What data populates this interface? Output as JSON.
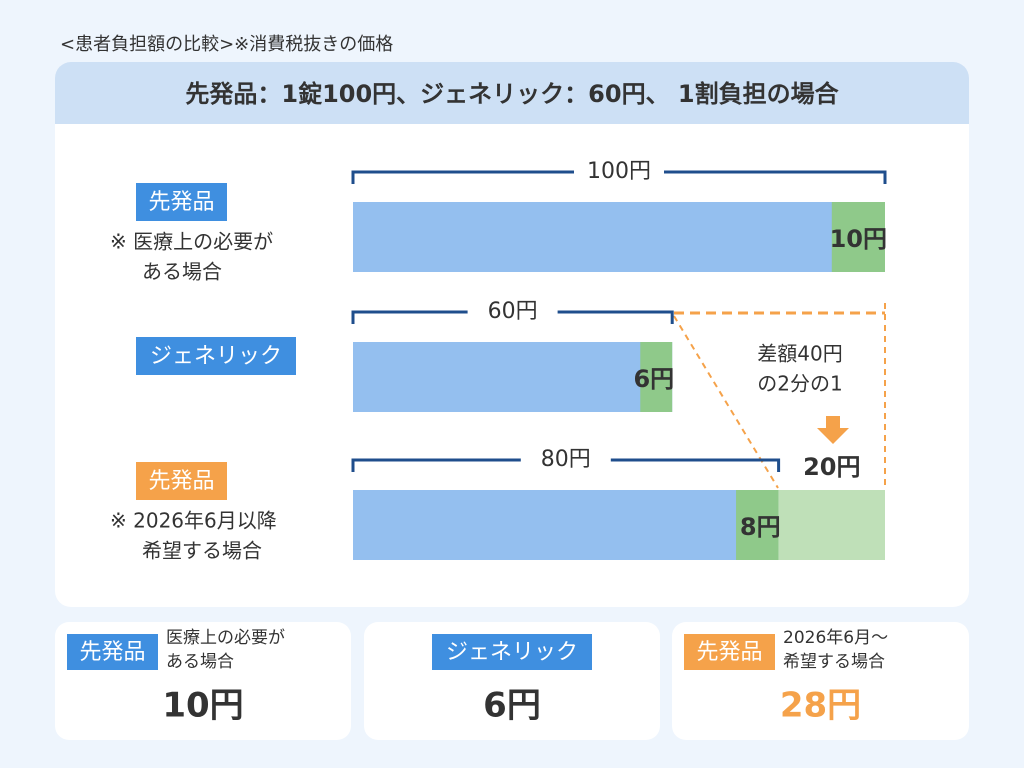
{
  "caption": "<患者負担額の比較>※消費税抜きの価格",
  "header": "先発品：1錠100円、ジェネリック：60円、 1割負担の場合",
  "rows": [
    {
      "tag": "先発品",
      "note": [
        "※ 医療上の必要が",
        "ある場合"
      ],
      "price": 100,
      "price_label": "100円",
      "copay": 10,
      "copay_label": "10円"
    },
    {
      "tag": "ジェネリック",
      "price": 60,
      "price_label": "60円",
      "copay": 6,
      "copay_label": "6円"
    },
    {
      "tag": "先発品",
      "note": [
        "※ 2026年6月以降",
        "希望する場合"
      ],
      "price": 80,
      "price_label": "80円",
      "copay": 8,
      "copay_label": "8円",
      "extra": 20,
      "extra_label": "20円"
    }
  ],
  "diff_note": [
    "差額40円",
    "の2分の1"
  ],
  "summary": [
    {
      "tag": "先発品",
      "note": [
        "医療上の必要が",
        "ある場合"
      ],
      "total": "10円"
    },
    {
      "tag": "ジェネリック",
      "total": "6円"
    },
    {
      "tag": "先発品",
      "note": [
        "2026年6月～",
        "希望する場合"
      ],
      "total": "28円"
    }
  ]
}
